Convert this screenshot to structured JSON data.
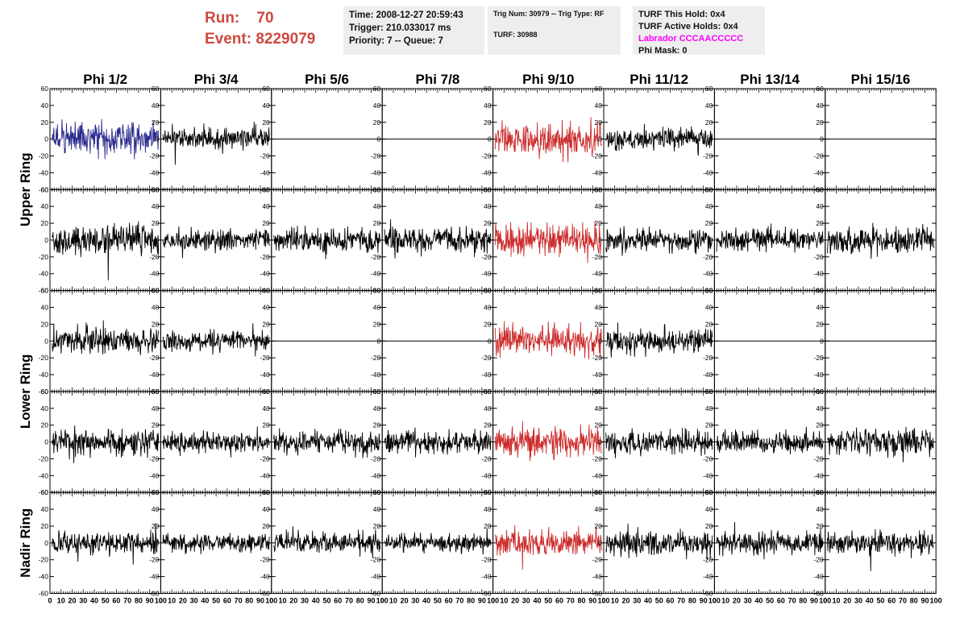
{
  "header": {
    "run_label": "Run:",
    "run_value": "70",
    "event_label": "Event:",
    "event_value": "8229079",
    "time": "Time: 2008-12-27 20:59:43",
    "trigger": "Trigger: 210.033017 ms",
    "priority_queue": "Priority: 7 -- Queue: 7",
    "trig_num_type": "Trig Num: 30979 -- Trig Type: RF",
    "turf": "TURF: 30988",
    "turf_this_hold": "TURF This Hold: 0x4",
    "turf_active_holds": "TURF Active Holds: 0x4",
    "labrador": "Labrador CCCAACCCCC",
    "phi_mask": "Phi Mask: 0"
  },
  "colors": {
    "accent_red": "#cc4a3f",
    "trace_blue": "#2b2b8e",
    "trace_red": "#cc2b2b",
    "trace_black": "#000000",
    "labrador_magenta": "#ff00ff"
  },
  "chart_data": {
    "type": "line",
    "column_titles": [
      "Phi 1/2",
      "Phi 3/4",
      "Phi 5/6",
      "Phi 7/8",
      "Phi 9/10",
      "Phi 11/12",
      "Phi 13/14",
      "Phi 15/16"
    ],
    "row_titles": [
      {
        "label": "Upper Ring",
        "rows": [
          0,
          1
        ]
      },
      {
        "label": "Lower Ring",
        "rows": [
          2,
          3
        ]
      },
      {
        "label": "Nadir Ring",
        "rows": [
          4
        ]
      }
    ],
    "xlim": [
      0,
      100
    ],
    "ylim": [
      -60,
      60
    ],
    "x_ticks": [
      0,
      10,
      20,
      30,
      40,
      50,
      60,
      70,
      80,
      90,
      100
    ],
    "y_ticks": [
      -60,
      -40,
      -20,
      0,
      20,
      40,
      60
    ],
    "n_samples": 100,
    "trace_style": [
      [
        "blue",
        "black",
        "flat",
        "flat",
        "red",
        "black",
        "flat",
        "flat"
      ],
      [
        "black",
        "black",
        "black",
        "black",
        "red",
        "black",
        "black",
        "black"
      ],
      [
        "black",
        "black",
        "flat",
        "flat",
        "red",
        "black",
        "flat",
        "flat"
      ],
      [
        "black",
        "black",
        "black",
        "black",
        "red",
        "black",
        "black",
        "black"
      ],
      [
        "black",
        "black",
        "black",
        "black",
        "red",
        "black",
        "black",
        "black"
      ]
    ],
    "amplitude": [
      [
        16,
        12,
        0,
        0,
        17,
        12,
        0,
        0
      ],
      [
        16,
        11,
        12,
        13,
        17,
        12,
        12,
        13
      ],
      [
        13,
        11,
        0,
        0,
        16,
        12,
        0,
        0
      ],
      [
        13,
        11,
        12,
        12,
        16,
        12,
        11,
        13
      ],
      [
        11,
        10,
        11,
        10,
        13,
        13,
        12,
        12
      ]
    ]
  }
}
